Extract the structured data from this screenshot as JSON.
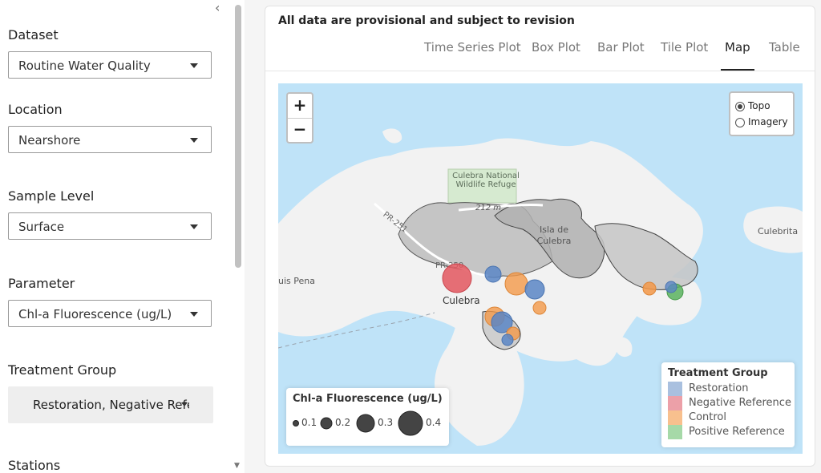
{
  "sidebar": {
    "collapse_icon": "chevron-left-icon",
    "fields": [
      {
        "label": "Dataset",
        "value": "Routine Water Quality"
      },
      {
        "label": "Location",
        "value": "Nearshore"
      },
      {
        "label": "Sample Level",
        "value": "Surface"
      },
      {
        "label": "Parameter",
        "value": "Chl-a Fluorescence (ug/L)"
      }
    ],
    "treatment_label": "Treatment Group",
    "treatment_value": "Restoration, Negative Reference, Control, Positive Reference",
    "stations_label": "Stations"
  },
  "main": {
    "notice": "All data are provisional and subject to revision",
    "tabs": [
      {
        "label": "Time Series Plot",
        "active": false
      },
      {
        "label": "Box Plot",
        "active": false
      },
      {
        "label": "Bar Plot",
        "active": false
      },
      {
        "label": "Tile Plot",
        "active": false
      },
      {
        "label": "Map",
        "active": true
      },
      {
        "label": "Table",
        "active": false
      }
    ]
  },
  "map": {
    "zoom_in": "+",
    "zoom_out": "−",
    "basemaps": [
      {
        "label": "Topo",
        "selected": true
      },
      {
        "label": "Imagery",
        "selected": false
      }
    ],
    "place_labels": {
      "refuge_line1": "Culebra National",
      "refuge_line2": "Wildlife Refuge",
      "road_212": "212 m",
      "road_pr251": "PR-251",
      "road_pr250": "PR-250",
      "isla_line1": "Isla de",
      "isla_line2": "Culebra",
      "culebra": "Culebra",
      "culebrita": "Culebrita",
      "luis_pena": "uis Pena"
    },
    "size_legend": {
      "title": "Chl-a Fluorescence (ug/L)",
      "items": [
        "0.1",
        "0.2",
        "0.3",
        "0.4"
      ]
    },
    "treatment_legend": {
      "title": "Treatment Group",
      "items": [
        {
          "label": "Restoration",
          "color": "#6f96cc"
        },
        {
          "label": "Negative Reference",
          "color": "#e3737f"
        },
        {
          "label": "Control",
          "color": "#f5a25d"
        },
        {
          "label": "Positive Reference",
          "color": "#7cc47f"
        }
      ]
    },
    "colors": {
      "water": "#bfe3f8",
      "land": "#f2f2f2",
      "refuge": "#d6ead0",
      "protected": "#b9b9b9"
    }
  }
}
